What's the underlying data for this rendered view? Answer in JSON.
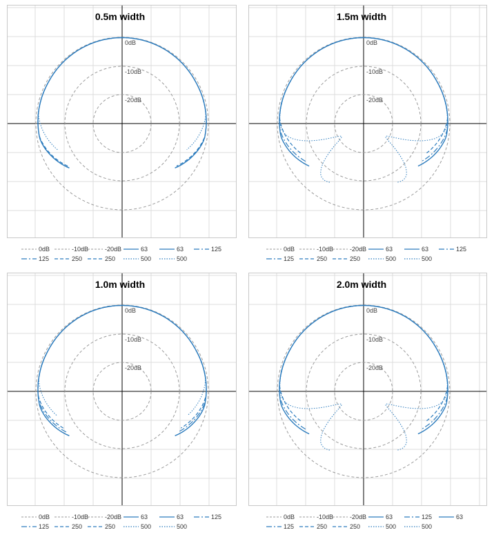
{
  "chart_data": [
    {
      "type": "polar-line",
      "title": "0.5m width",
      "rings": [
        "0dB",
        "-10dB",
        "-20dB"
      ],
      "legend": [
        "0dB",
        "-10dB",
        "-20dB",
        "63",
        "63",
        "125",
        "125",
        "250",
        "250",
        "500",
        "500"
      ],
      "series": [
        {
          "name": "63",
          "ends_deg": 130,
          "dips": []
        },
        {
          "name": "125",
          "ends_deg": 130,
          "dips": []
        },
        {
          "name": "250",
          "ends_deg": 128,
          "dips": []
        },
        {
          "name": "500",
          "ends_deg": 112,
          "dips": []
        }
      ]
    },
    {
      "type": "polar-line",
      "title": "1.5m width",
      "rings": [
        "0dB",
        "-10dB",
        "-20dB"
      ],
      "legend": [
        "0dB",
        "-10dB",
        "-20dB",
        "63",
        "63",
        "125",
        "125",
        "250",
        "250",
        "500",
        "500"
      ],
      "series": [
        {
          "name": "63",
          "ends_deg": 128,
          "dips": []
        },
        {
          "name": "125",
          "ends_deg": 123,
          "dips": []
        },
        {
          "name": "250",
          "ends_deg": 115,
          "dips": []
        },
        {
          "name": "500",
          "ends_deg": 150,
          "dips": [
            {
              "center_deg": 120,
              "depth_db": 20
            }
          ]
        }
      ]
    },
    {
      "type": "polar-line",
      "title": "1.0m width",
      "rings": [
        "0dB",
        "-10dB",
        "-20dB"
      ],
      "legend": [
        "0dB",
        "-10dB",
        "-20dB",
        "63",
        "63",
        "125",
        "125",
        "250",
        "250",
        "500",
        "500"
      ],
      "series": [
        {
          "name": "63",
          "ends_deg": 130,
          "dips": []
        },
        {
          "name": "125",
          "ends_deg": 126,
          "dips": []
        },
        {
          "name": "250",
          "ends_deg": 122,
          "dips": []
        },
        {
          "name": "500",
          "ends_deg": 110,
          "dips": []
        }
      ]
    },
    {
      "type": "polar-line",
      "title": "2.0m width",
      "rings": [
        "0dB",
        "-10dB",
        "-20dB"
      ],
      "legend": [
        "0dB",
        "-10dB",
        "-20dB",
        "63",
        "125",
        "63",
        "125",
        "250",
        "250",
        "500",
        "500"
      ],
      "series": [
        {
          "name": "63",
          "ends_deg": 128,
          "dips": []
        },
        {
          "name": "125",
          "ends_deg": 123,
          "dips": []
        },
        {
          "name": "250",
          "ends_deg": 115,
          "dips": []
        },
        {
          "name": "500",
          "ends_deg": 150,
          "dips": [
            {
              "center_deg": 120,
              "depth_db": 20
            }
          ]
        }
      ]
    }
  ],
  "colors": {
    "ring": "#9a9a9a",
    "series": "#2b7bbd",
    "grid": "#dcdcdc",
    "axis": "#000000"
  }
}
